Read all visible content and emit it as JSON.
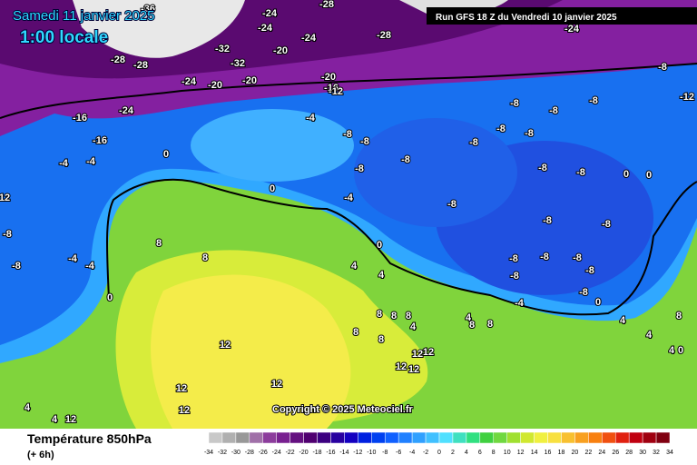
{
  "header": {
    "date": "Samedi 11 janvier 2025",
    "time": "1:00 locale",
    "run": "Run GFS 18 Z du Vendredi 10 janvier 2025"
  },
  "copyright": "Copyright © 2025 Meteociel.fr",
  "legend": {
    "title": "Température 850hPa",
    "step": "(+ 6h)",
    "ticks": [
      -34,
      -32,
      -30,
      -28,
      -26,
      -24,
      -22,
      -20,
      -18,
      -16,
      -14,
      -12,
      -10,
      -8,
      -6,
      -4,
      -2,
      0,
      2,
      4,
      6,
      8,
      10,
      12,
      14,
      16,
      18,
      20,
      22,
      24,
      26,
      28,
      30,
      32,
      34
    ],
    "colors": [
      "#c8c8c8",
      "#b0b0b0",
      "#989898",
      "#a070a8",
      "#8c3c9c",
      "#782090",
      "#641080",
      "#500070",
      "#3c0080",
      "#2800a0",
      "#1400c0",
      "#0020e0",
      "#0040f0",
      "#1060ff",
      "#2080ff",
      "#30a0ff",
      "#40c0ff",
      "#50e0ff",
      "#40e0c0",
      "#30e080",
      "#40d040",
      "#70d840",
      "#a0e030",
      "#d0e830",
      "#f0f040",
      "#f8e040",
      "#f8c030",
      "#f8a020",
      "#f88010",
      "#f05010",
      "#e02010",
      "#c00010",
      "#a00010",
      "#800010",
      "#600010"
    ]
  },
  "map": {
    "labels": [
      -36,
      -24,
      -28,
      -24,
      -28,
      -24,
      -20,
      -32,
      -32,
      -28,
      -28,
      -24,
      -20,
      -20,
      -20,
      -16,
      -12,
      -24,
      -8,
      -12,
      -24,
      -16,
      -16,
      -4,
      0,
      -4,
      -4,
      12,
      0,
      -4,
      -8,
      -8,
      -8,
      -8,
      -8,
      -8,
      -8,
      -8,
      -8,
      -8,
      -8,
      -8,
      -8,
      0,
      0,
      -8,
      -8,
      -8,
      -8,
      -8,
      -8,
      -8,
      -8,
      -4,
      0,
      0,
      4,
      4,
      8,
      8,
      -8,
      -8,
      -4,
      -4,
      0,
      12,
      8,
      8,
      8,
      8,
      8,
      4,
      4,
      8,
      8,
      12,
      12,
      12,
      12,
      12,
      12,
      12,
      4,
      4,
      12,
      4,
      4,
      4,
      0,
      8
    ]
  }
}
